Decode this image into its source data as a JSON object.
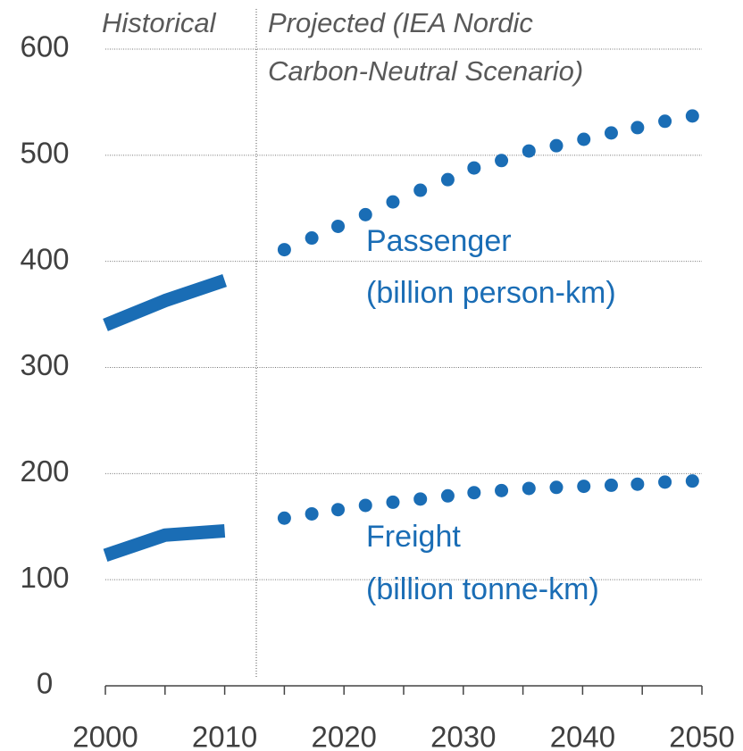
{
  "chart_data": {
    "type": "line",
    "annotations": {
      "historical": "Historical",
      "projected": [
        "Projected (IEA Nordic",
        "Carbon-Neutral Scenario)"
      ]
    },
    "historical_x": [
      2000,
      2005,
      2010
    ],
    "projected_x": [
      2015,
      2017.3,
      2019.5,
      2021.8,
      2024.1,
      2026.4,
      2028.7,
      2030.9,
      2033.2,
      2035.5,
      2037.8,
      2040.1,
      2042.4,
      2044.6,
      2046.9,
      2049.2
    ],
    "series": [
      {
        "name": "Passenger",
        "unit": "(billion person-km)",
        "color": "#1a6db5",
        "historical": [
          340,
          363,
          382
        ],
        "projected": [
          411,
          422,
          433,
          444,
          456,
          467,
          477,
          488,
          495,
          504,
          509,
          515,
          521,
          526,
          532,
          537
        ]
      },
      {
        "name": "Freight",
        "unit": "(billion tonne-km)",
        "color": "#1a6db5",
        "historical": [
          123,
          142,
          146
        ],
        "projected": [
          158,
          162,
          166,
          170,
          173,
          176,
          179,
          182,
          184,
          186,
          187,
          188,
          189,
          190,
          192,
          193
        ]
      }
    ],
    "xlim": [
      2000,
      2050
    ],
    "xticks": [
      2000,
      2010,
      2020,
      2030,
      2040,
      2050
    ],
    "xminorticks": [
      2005,
      2015,
      2025,
      2035,
      2045
    ],
    "ylim": [
      0,
      600
    ],
    "yticks": [
      0,
      100,
      200,
      300,
      400,
      500,
      600
    ],
    "grid": true
  }
}
